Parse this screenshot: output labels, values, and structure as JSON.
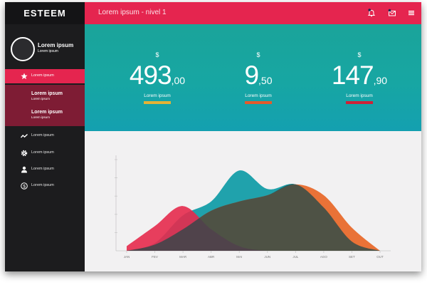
{
  "brand": "ESTEEM",
  "page_title": "Lorem ipsum - nivel 1",
  "profile": {
    "name": "Lorem ipsum",
    "subtitle": "Lorem ipsum"
  },
  "nav": {
    "items": [
      {
        "label": "Lorem ipsum",
        "icon": "star-icon",
        "active": true
      },
      {
        "label": "Lorem ipsum",
        "icon": "trend-icon"
      },
      {
        "label": "Lorem ipsum",
        "icon": "gear-icon"
      },
      {
        "label": "Lorem ipsum",
        "icon": "user-icon"
      },
      {
        "label": "Lorem ipsum",
        "icon": "dollar-icon"
      }
    ],
    "submenu": [
      {
        "title": "Lorem ipsum",
        "subtitle": "Lorem ipsum"
      },
      {
        "title": "Lorem ipsum",
        "subtitle": "Lorem ipsum"
      }
    ]
  },
  "header_icons": [
    "bell-icon",
    "mail-icon",
    "menu-icon"
  ],
  "stats": [
    {
      "currency": "$",
      "integer": "493",
      "decimal": ",00",
      "label": "Lorem ipsum",
      "color": "#e5b335"
    },
    {
      "currency": "$",
      "integer": "9",
      "decimal": ",50",
      "label": "Lorem ipsum",
      "color": "#e55a2b"
    },
    {
      "currency": "$",
      "integer": "147",
      "decimal": ",90",
      "label": "Lorem ipsum",
      "color": "#cf2236"
    }
  ],
  "chart_data": {
    "type": "area",
    "categories": [
      "JAN",
      "FEV",
      "MAR",
      "ABR",
      "MAI",
      "JUN",
      "JUL",
      "AGO",
      "SET",
      "OUT"
    ],
    "ylim": [
      0,
      6
    ],
    "grid": false,
    "series": [
      {
        "values": [
          0,
          0.5,
          2.3,
          3.2,
          5.2,
          4.0,
          4.3,
          2.8,
          0.6,
          0
        ],
        "color": "#149da8"
      },
      {
        "values": [
          0,
          0.4,
          1.4,
          2.6,
          3.2,
          3.6,
          4.3,
          3.6,
          1.5,
          0
        ],
        "color": "#e86a2c"
      },
      {
        "values": [
          0.3,
          1.6,
          2.9,
          1.4,
          0.3,
          0,
          0,
          0,
          0,
          0
        ],
        "color": "#e52a4c"
      }
    ]
  },
  "colors": {
    "accent": "#e5254f",
    "sidebar": "#1c1c1e",
    "teal": "#17a6a3"
  }
}
